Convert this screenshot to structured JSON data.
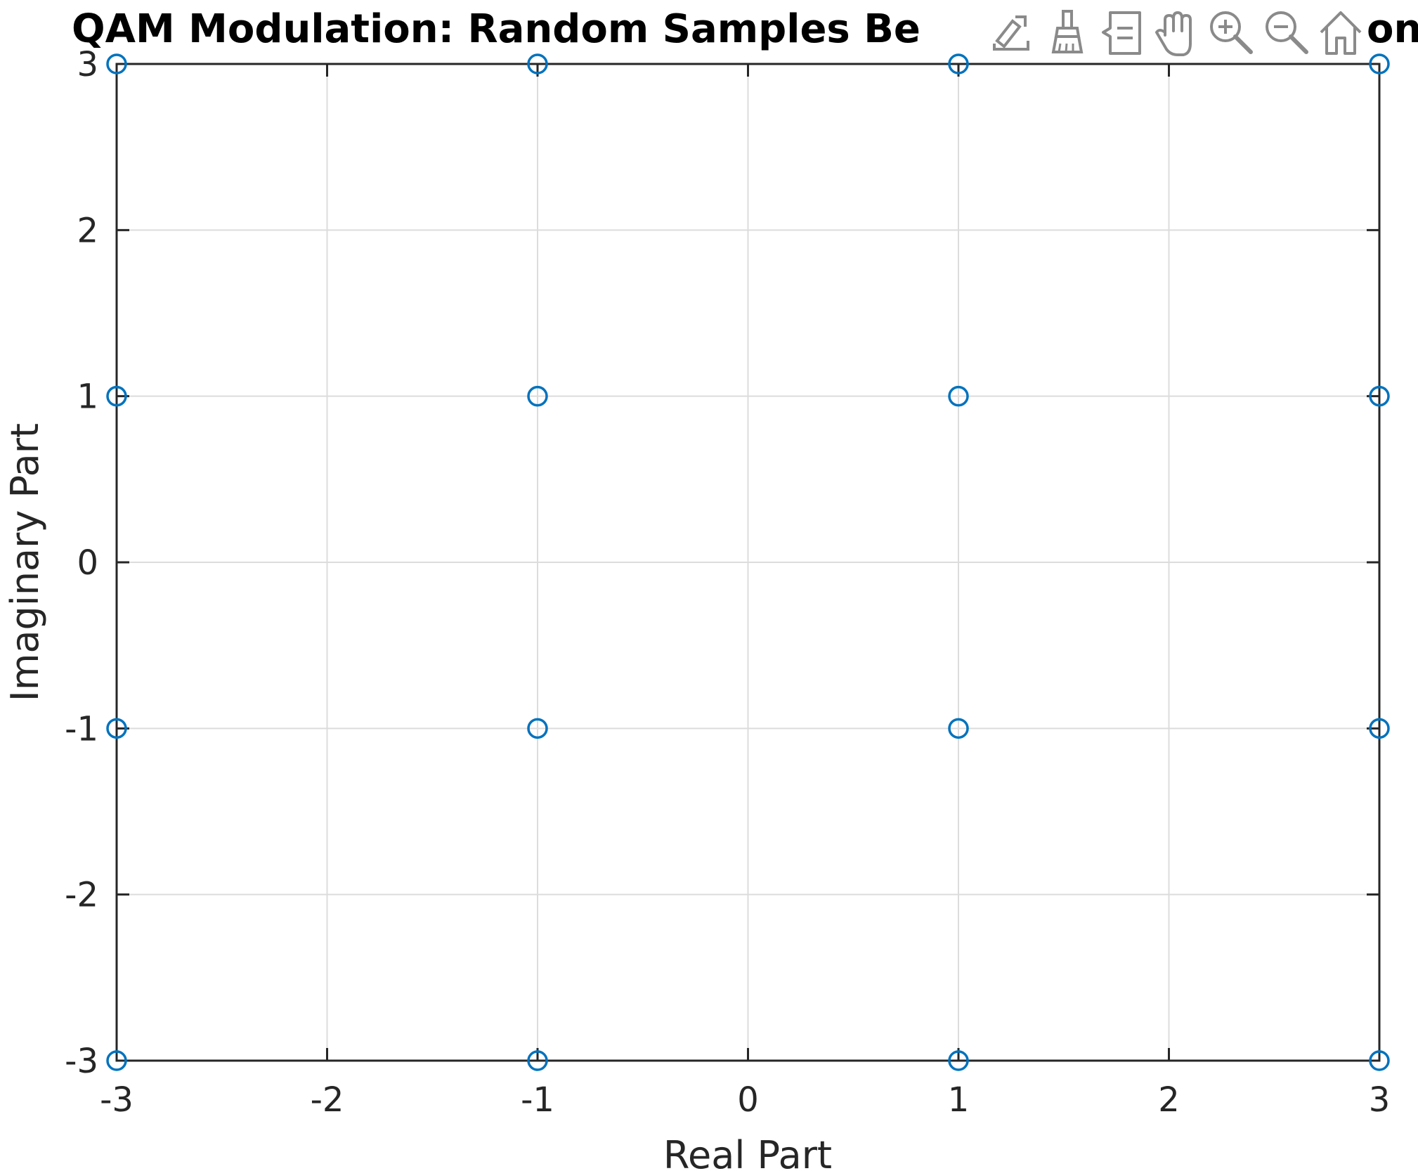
{
  "colors": {
    "marker": "#0072BD",
    "axis": "#262626",
    "grid": "#dcdcdc",
    "toolbar_icon": "#8a8a8a"
  },
  "chart_data": {
    "type": "scatter",
    "title": "QAM Modulation: Random Samples Be",
    "title_tail": "on",
    "xlabel": "Real Part",
    "ylabel": "Imaginary Part",
    "xlim": [
      -3,
      3
    ],
    "ylim": [
      -3,
      3
    ],
    "xticks": [
      -3,
      -2,
      -1,
      0,
      1,
      2,
      3
    ],
    "yticks": [
      -3,
      -2,
      -1,
      0,
      1,
      2,
      3
    ],
    "xtick_labels": [
      "-3",
      "-2",
      "-1",
      "0",
      "1",
      "2",
      "3"
    ],
    "ytick_labels": [
      "-3",
      "-2",
      "-1",
      "0",
      "1",
      "2",
      "3"
    ],
    "grid": true,
    "marker": "circle-open",
    "points": [
      {
        "x": -3,
        "y": 3
      },
      {
        "x": -1,
        "y": 3
      },
      {
        "x": 1,
        "y": 3
      },
      {
        "x": 3,
        "y": 3
      },
      {
        "x": -3,
        "y": 1
      },
      {
        "x": -1,
        "y": 1
      },
      {
        "x": 1,
        "y": 1
      },
      {
        "x": 3,
        "y": 1
      },
      {
        "x": -3,
        "y": -1
      },
      {
        "x": -1,
        "y": -1
      },
      {
        "x": 1,
        "y": -1
      },
      {
        "x": 3,
        "y": -1
      },
      {
        "x": -3,
        "y": -3
      },
      {
        "x": -1,
        "y": -3
      },
      {
        "x": 1,
        "y": -3
      },
      {
        "x": 3,
        "y": -3
      }
    ]
  },
  "toolbar": {
    "icons": [
      "export-icon",
      "brush-icon",
      "datatip-icon",
      "pan-icon",
      "zoom-in-icon",
      "zoom-out-icon",
      "home-icon"
    ]
  }
}
